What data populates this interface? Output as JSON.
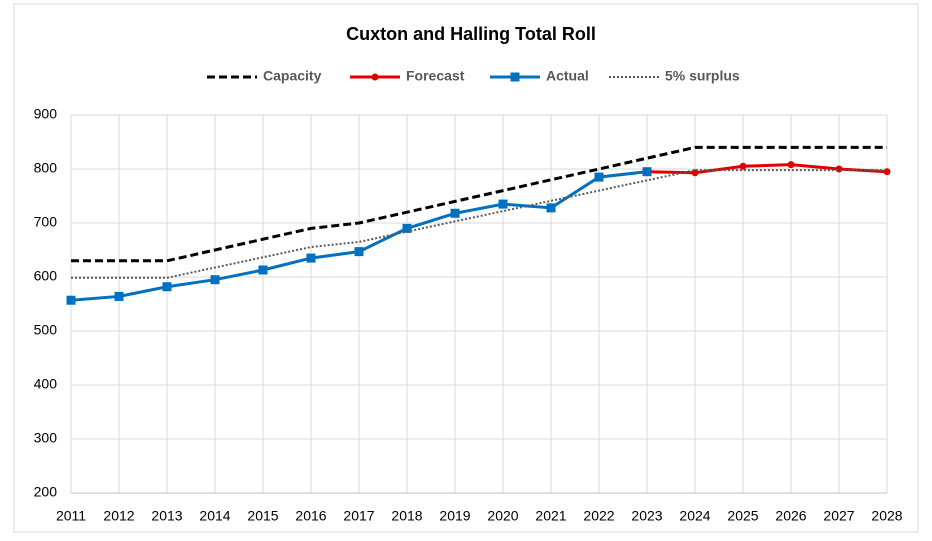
{
  "chart_data": {
    "type": "line",
    "title": "Cuxton and Halling Total Roll",
    "categories": [
      "2011",
      "2012",
      "2013",
      "2014",
      "2015",
      "2016",
      "2017",
      "2018",
      "2019",
      "2020",
      "2021",
      "2022",
      "2023",
      "2024",
      "2025",
      "2026",
      "2027",
      "2028"
    ],
    "series": [
      {
        "name": "Capacity",
        "color": "#000000",
        "dash": "dashed",
        "marker": "none",
        "values": [
          630,
          630,
          630,
          650,
          670,
          690,
          700,
          720,
          740,
          760,
          780,
          800,
          820,
          840,
          840,
          840,
          840,
          840
        ]
      },
      {
        "name": "Forecast",
        "color": "#e00000",
        "dash": "solid",
        "marker": "circle",
        "values": [
          null,
          null,
          null,
          null,
          null,
          null,
          null,
          null,
          null,
          null,
          null,
          null,
          795,
          793,
          805,
          808,
          800,
          795
        ]
      },
      {
        "name": "Actual",
        "color": "#0070c0",
        "dash": "solid",
        "marker": "square",
        "values": [
          557,
          564,
          582,
          595,
          613,
          635,
          647,
          690,
          718,
          735,
          728,
          785,
          795,
          null,
          null,
          null,
          null,
          null
        ]
      },
      {
        "name": "5% surplus",
        "color": "#595959",
        "dash": "dotted",
        "marker": "none",
        "values": [
          598.5,
          598.5,
          598.5,
          617.5,
          636.5,
          655.5,
          665,
          684,
          703,
          722,
          741,
          760,
          779,
          798,
          798,
          798,
          798,
          798
        ]
      }
    ],
    "ylim": [
      200,
      900
    ],
    "yticks": [
      200,
      300,
      400,
      500,
      600,
      700,
      800,
      900
    ],
    "grid": true,
    "legend": "top"
  }
}
